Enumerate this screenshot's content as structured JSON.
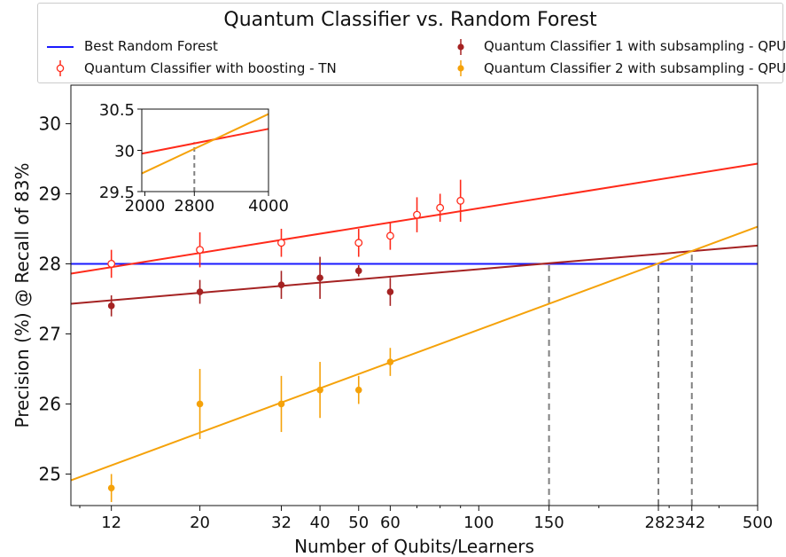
{
  "chart_data": {
    "type": "scatter",
    "title": "Quantum Classifier vs. Random Forest",
    "xlabel": "Number of Qubits/Learners",
    "ylabel": "Precision (%) @ Recall of 83%",
    "xscale": "log",
    "xlim": [
      9.5,
      500
    ],
    "ylim": [
      24.55,
      30.55
    ],
    "xticks": [
      12,
      20,
      32,
      40,
      50,
      60,
      100,
      150,
      282,
      342,
      500
    ],
    "xticklabels": [
      "12",
      "20",
      "32",
      "40",
      "50",
      "60",
      "100",
      "150",
      "282",
      "342",
      "500"
    ],
    "xticklabel_display": [
      "12",
      "20",
      "32",
      "40",
      "50",
      "60",
      "100",
      "150",
      "282342",
      "",
      "500"
    ],
    "yticks": [
      25,
      26,
      27,
      28,
      29,
      30
    ],
    "legend_position": "top (above plot)",
    "series": [
      {
        "name": "Best Random Forest",
        "kind": "hline",
        "y": 28,
        "color": "#1a1aff"
      },
      {
        "name": "Quantum Classifier with boosting - TN",
        "kind": "errorbar",
        "marker": "open-circle",
        "color": "#ff2a1a",
        "x": [
          12,
          20,
          32,
          50,
          60,
          70,
          80,
          90
        ],
        "y": [
          28.0,
          28.2,
          28.3,
          28.3,
          28.4,
          28.7,
          28.8,
          28.9
        ],
        "err": [
          0.2,
          0.25,
          0.2,
          0.2,
          0.2,
          0.25,
          0.2,
          0.3
        ],
        "fit": {
          "x": [
            9.5,
            500
          ],
          "y": [
            27.86,
            29.43
          ]
        }
      },
      {
        "name": "Quantum Classifier 1 with subsampling - QPU",
        "kind": "errorbar",
        "marker": "filled-circle",
        "color": "#a52222",
        "x": [
          12,
          20,
          32,
          40,
          50,
          60
        ],
        "y": [
          27.4,
          27.6,
          27.7,
          27.8,
          27.9,
          27.6
        ],
        "err": [
          0.15,
          0.17,
          0.2,
          0.3,
          0.08,
          0.2
        ],
        "fit": {
          "x": [
            9.5,
            500
          ],
          "y": [
            27.43,
            28.26
          ]
        }
      },
      {
        "name": "Quantum Classifier 2 with subsampling - QPU",
        "kind": "errorbar",
        "marker": "filled-circle",
        "color": "#f5a20a",
        "x": [
          12,
          20,
          32,
          40,
          50,
          60
        ],
        "y": [
          24.8,
          26.0,
          26.0,
          26.2,
          26.2,
          26.6
        ],
        "err": [
          0.2,
          0.5,
          0.4,
          0.4,
          0.2,
          0.2
        ],
        "fit": {
          "x": [
            9.5,
            500
          ],
          "y": [
            24.91,
            28.53
          ]
        }
      }
    ],
    "annotations": [
      {
        "kind": "vline-dashed",
        "x": 150,
        "y_to": 28.0,
        "color": "#808080"
      },
      {
        "kind": "vline-dashed",
        "x": 282,
        "y_to": 28.0,
        "color": "#808080"
      },
      {
        "kind": "vline-dashed",
        "x": 342,
        "y_to": 28.13,
        "color": "#808080"
      }
    ],
    "inset": {
      "xlim": [
        1950,
        4000
      ],
      "ylim": [
        29.5,
        30.5
      ],
      "xticks": [
        2000,
        2800,
        4000
      ],
      "yticks": [
        29.5,
        30,
        30.5
      ],
      "yticklabels": [
        "29.5",
        "30",
        "30.5"
      ],
      "series": [
        {
          "color": "#ff2a1a",
          "x": [
            1950,
            4000
          ],
          "y": [
            29.96,
            30.26
          ]
        },
        {
          "color": "#f5a20a",
          "x": [
            1950,
            4000
          ],
          "y": [
            29.72,
            30.44
          ]
        }
      ],
      "vline": {
        "x": 2800,
        "y_to": 30.1,
        "color": "#808080"
      }
    }
  }
}
